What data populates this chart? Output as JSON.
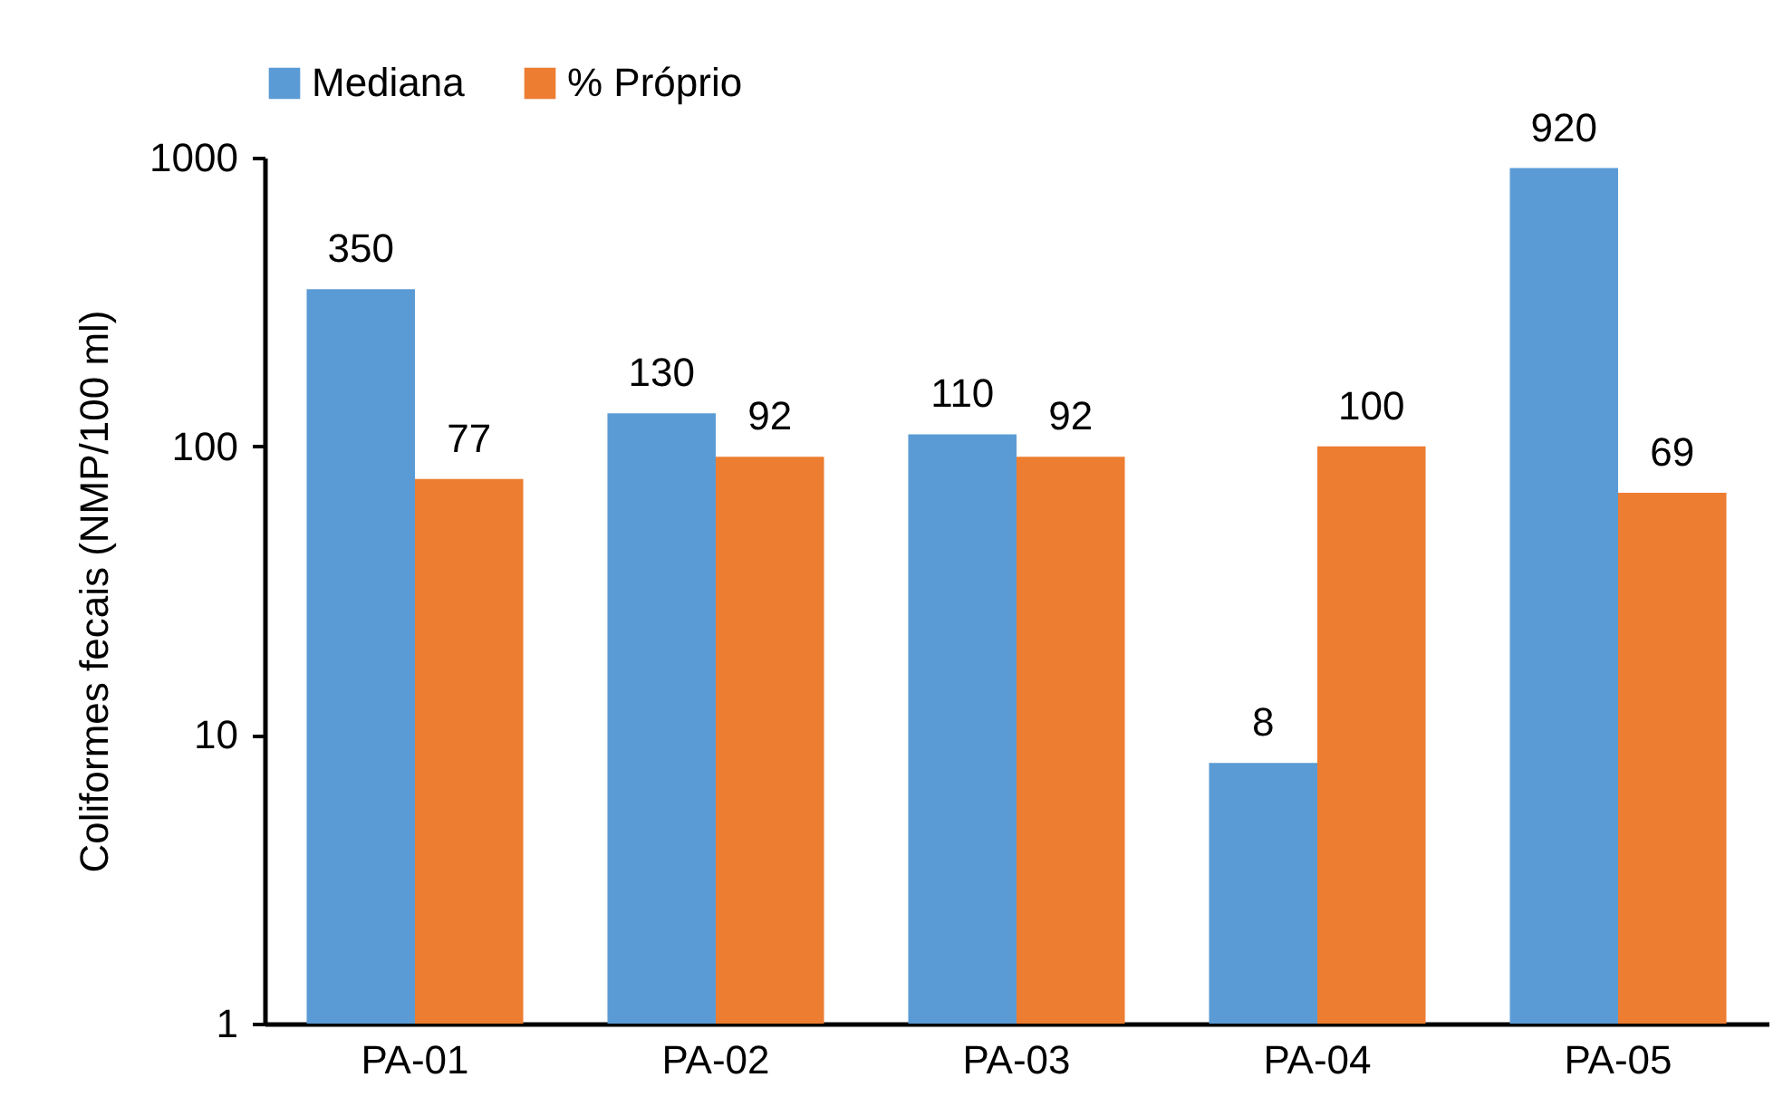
{
  "chart_data": {
    "type": "bar",
    "ylabel": "Coliformes fecais (NMP/100 ml)",
    "categories": [
      "PA-01",
      "PA-02",
      "PA-03",
      "PA-04",
      "PA-05"
    ],
    "series": [
      {
        "name": "Mediana",
        "color": "#5b9bd5",
        "values": [
          350,
          130,
          110,
          8,
          920
        ]
      },
      {
        "name": "% Próprio",
        "color": "#ed7d31",
        "values": [
          77,
          92,
          92,
          100,
          69
        ]
      }
    ],
    "log": "y",
    "ylim": [
      1,
      1000
    ],
    "yticks": [
      1,
      10,
      100,
      1000
    ],
    "grid": false,
    "legend": "top",
    "data_labels": true
  }
}
